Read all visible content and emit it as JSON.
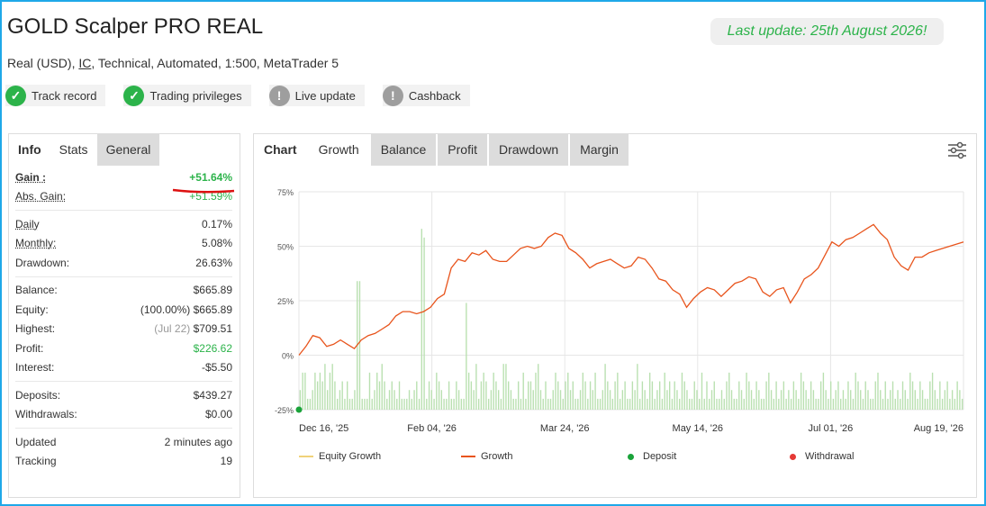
{
  "header": {
    "title": "GOLD Scalper PRO REAL",
    "subtitle_pre": "Real (USD), ",
    "subtitle_broker": "IC",
    "subtitle_post": ", Technical, Automated, 1:500, MetaTrader 5",
    "last_update": "Last update: 25th August 2026!"
  },
  "badges": [
    {
      "label": "Track record",
      "icon": "check-icon",
      "status": "ok"
    },
    {
      "label": "Trading privileges",
      "icon": "check-icon",
      "status": "ok"
    },
    {
      "label": "Live update",
      "icon": "exclamation-icon",
      "status": "na"
    },
    {
      "label": "Cashback",
      "icon": "exclamation-icon",
      "status": "na"
    }
  ],
  "left_tabs": {
    "info": "Info",
    "stats": "Stats",
    "general": "General"
  },
  "stats": {
    "gain": {
      "k": "Gain :",
      "v": "+51.64%"
    },
    "abs_gain": {
      "k": "Abs. Gain:",
      "v": "+51.59%"
    },
    "daily": {
      "k": "Daily",
      "v": "0.17%"
    },
    "monthly": {
      "k": "Monthly:",
      "v": "5.08%"
    },
    "drawdown": {
      "k": "Drawdown:",
      "v": "26.63%"
    },
    "balance": {
      "k": "Balance:",
      "v": "$665.89"
    },
    "equity": {
      "k": "Equity:",
      "pre": "(100.00%)",
      "v": "$665.89"
    },
    "highest": {
      "k": "Highest:",
      "pre": "(Jul 22)",
      "v": "$709.51"
    },
    "profit": {
      "k": "Profit:",
      "v": "$226.62"
    },
    "interest": {
      "k": "Interest:",
      "v": "-$5.50"
    },
    "deposits": {
      "k": "Deposits:",
      "v": "$439.27"
    },
    "withdrawals": {
      "k": "Withdrawals:",
      "v": "$0.00"
    },
    "updated": {
      "k": "Updated",
      "v": "2 minutes ago"
    },
    "tracking": {
      "k": "Tracking",
      "v": "19"
    }
  },
  "right_tabs": {
    "chart": "Chart",
    "growth": "Growth",
    "balance": "Balance",
    "profit": "Profit",
    "drawdown": "Drawdown",
    "margin": "Margin"
  },
  "colors": {
    "growth": "#e8541c",
    "bars": "#b9e0b0",
    "deposit": "#1aa33a",
    "withdrawal": "#e53935",
    "equity": "#f0d27a"
  },
  "chart_data": {
    "type": "line",
    "title": "",
    "ylim": [
      -25,
      75
    ],
    "y_ticks": [
      "75%",
      "50%",
      "25%",
      "0%",
      "-25%"
    ],
    "x_ticks": [
      "Dec 16, '25",
      "Feb 04, '26",
      "Mar 24, '26",
      "May 14, '26",
      "Jul 01, '26",
      "Aug 19, '26"
    ],
    "legend": [
      "Equity Growth",
      "Growth",
      "Deposit",
      "Withdrawal"
    ],
    "growth_points": [
      [
        0,
        0
      ],
      [
        3,
        4
      ],
      [
        6,
        9
      ],
      [
        9,
        8
      ],
      [
        12,
        4
      ],
      [
        15,
        5
      ],
      [
        18,
        7
      ],
      [
        21,
        5
      ],
      [
        24,
        3
      ],
      [
        27,
        7
      ],
      [
        30,
        9
      ],
      [
        33,
        10
      ],
      [
        36,
        12
      ],
      [
        39,
        14
      ],
      [
        42,
        18
      ],
      [
        45,
        20
      ],
      [
        48,
        20
      ],
      [
        51,
        19
      ],
      [
        54,
        20
      ],
      [
        57,
        22
      ],
      [
        60,
        26
      ],
      [
        63,
        28
      ],
      [
        66,
        40
      ],
      [
        69,
        44
      ],
      [
        72,
        43
      ],
      [
        75,
        47
      ],
      [
        78,
        46
      ],
      [
        81,
        48
      ],
      [
        84,
        44
      ],
      [
        87,
        43
      ],
      [
        90,
        43
      ],
      [
        93,
        46
      ],
      [
        96,
        49
      ],
      [
        99,
        50
      ],
      [
        102,
        49
      ],
      [
        105,
        50
      ],
      [
        108,
        54
      ],
      [
        111,
        56
      ],
      [
        114,
        55
      ],
      [
        117,
        49
      ],
      [
        120,
        47
      ],
      [
        123,
        44
      ],
      [
        126,
        40
      ],
      [
        129,
        42
      ],
      [
        132,
        43
      ],
      [
        135,
        44
      ],
      [
        138,
        42
      ],
      [
        141,
        40
      ],
      [
        144,
        41
      ],
      [
        147,
        45
      ],
      [
        150,
        44
      ],
      [
        153,
        40
      ],
      [
        156,
        35
      ],
      [
        159,
        34
      ],
      [
        162,
        30
      ],
      [
        165,
        28
      ],
      [
        168,
        22
      ],
      [
        171,
        26
      ],
      [
        174,
        29
      ],
      [
        177,
        31
      ],
      [
        180,
        30
      ],
      [
        183,
        27
      ],
      [
        186,
        30
      ],
      [
        189,
        33
      ],
      [
        192,
        34
      ],
      [
        195,
        36
      ],
      [
        198,
        35
      ],
      [
        201,
        29
      ],
      [
        204,
        27
      ],
      [
        207,
        30
      ],
      [
        210,
        31
      ],
      [
        213,
        24
      ],
      [
        216,
        29
      ],
      [
        219,
        35
      ],
      [
        222,
        37
      ],
      [
        225,
        40
      ],
      [
        228,
        46
      ],
      [
        231,
        52
      ],
      [
        234,
        50
      ],
      [
        237,
        53
      ],
      [
        240,
        54
      ],
      [
        243,
        56
      ],
      [
        246,
        58
      ],
      [
        249,
        60
      ],
      [
        252,
        56
      ],
      [
        255,
        53
      ],
      [
        258,
        45
      ],
      [
        261,
        41
      ],
      [
        264,
        39
      ],
      [
        267,
        45
      ],
      [
        270,
        45
      ],
      [
        273,
        47
      ],
      [
        276,
        48
      ],
      [
        279,
        49
      ],
      [
        282,
        50
      ],
      [
        285,
        51
      ],
      [
        288,
        52
      ]
    ],
    "bars_percent": [
      -16,
      -8,
      -8,
      -20,
      -20,
      -16,
      -8,
      -12,
      -8,
      -12,
      -4,
      -16,
      -8,
      -4,
      -12,
      -20,
      -16,
      -12,
      -20,
      -12,
      -20,
      -20,
      -16,
      34,
      34,
      -20,
      -20,
      -20,
      -8,
      -20,
      -16,
      -8,
      -12,
      -4,
      -12,
      -20,
      -16,
      -12,
      -16,
      -20,
      -12,
      -20,
      -20,
      -20,
      -16,
      -20,
      -16,
      -12,
      -20,
      58,
      54,
      -20,
      -12,
      -16,
      -20,
      -8,
      -12,
      -16,
      -20,
      -20,
      -12,
      -20,
      -20,
      -12,
      -16,
      -20,
      -20,
      24,
      -8,
      -12,
      -16,
      -4,
      -20,
      -12,
      -8,
      -12,
      -20,
      -16,
      -8,
      -12,
      -16,
      -20,
      -4,
      -4,
      -12,
      -16,
      -20,
      -20,
      -12,
      -20,
      -8,
      -20,
      -12,
      -12,
      -16,
      -8,
      -4,
      -16,
      -20,
      -12,
      -20,
      -20,
      -16,
      -8,
      -12,
      -16,
      -20,
      -12,
      -8,
      -16,
      -12,
      -20,
      -20,
      -16,
      -8,
      -12,
      -20,
      -12,
      -16,
      -8,
      -20,
      -20,
      -16,
      -4,
      -12,
      -16,
      -20,
      -12,
      -8,
      -20,
      -16,
      -12,
      -20,
      -20,
      -12,
      -16,
      -4,
      -20,
      -12,
      -16,
      -20,
      -8,
      -12,
      -20,
      -16,
      -12,
      -20,
      -8,
      -16,
      -12,
      -20,
      -12,
      -16,
      -20,
      -8,
      -12,
      -16,
      -20,
      -20,
      -12,
      -16,
      -20,
      -8,
      -20,
      -12,
      -20,
      -16,
      -12,
      -20,
      -20,
      -16,
      -20,
      -12,
      -8,
      -16,
      -20,
      -20,
      -12,
      -16,
      -20,
      -8,
      -12,
      -16,
      -20,
      -12,
      -16,
      -20,
      -20,
      -12,
      -8,
      -16,
      -20,
      -12,
      -20,
      -16,
      -12,
      -20,
      -16,
      -20,
      -12,
      -16,
      -20,
      -8,
      -12,
      -16,
      -20,
      -12,
      -16,
      -20,
      -20,
      -12,
      -8,
      -16,
      -20,
      -12,
      -20,
      -16,
      -12,
      -20,
      -16,
      -20,
      -12,
      -16,
      -20,
      -8,
      -12,
      -16,
      -20,
      -12,
      -16,
      -20,
      -20,
      -12,
      -8,
      -16,
      -20,
      -12,
      -20,
      -16,
      -12,
      -20,
      -16,
      -20,
      -12,
      -16,
      -20,
      -8,
      -12,
      -16,
      -20,
      -12,
      -16,
      -20,
      -20,
      -12,
      -8,
      -16,
      -20,
      -12,
      -20,
      -16,
      -12,
      -20,
      -16,
      -20,
      -12,
      -16,
      -20
    ],
    "deposit_points": [
      [
        0,
        -25
      ]
    ]
  }
}
